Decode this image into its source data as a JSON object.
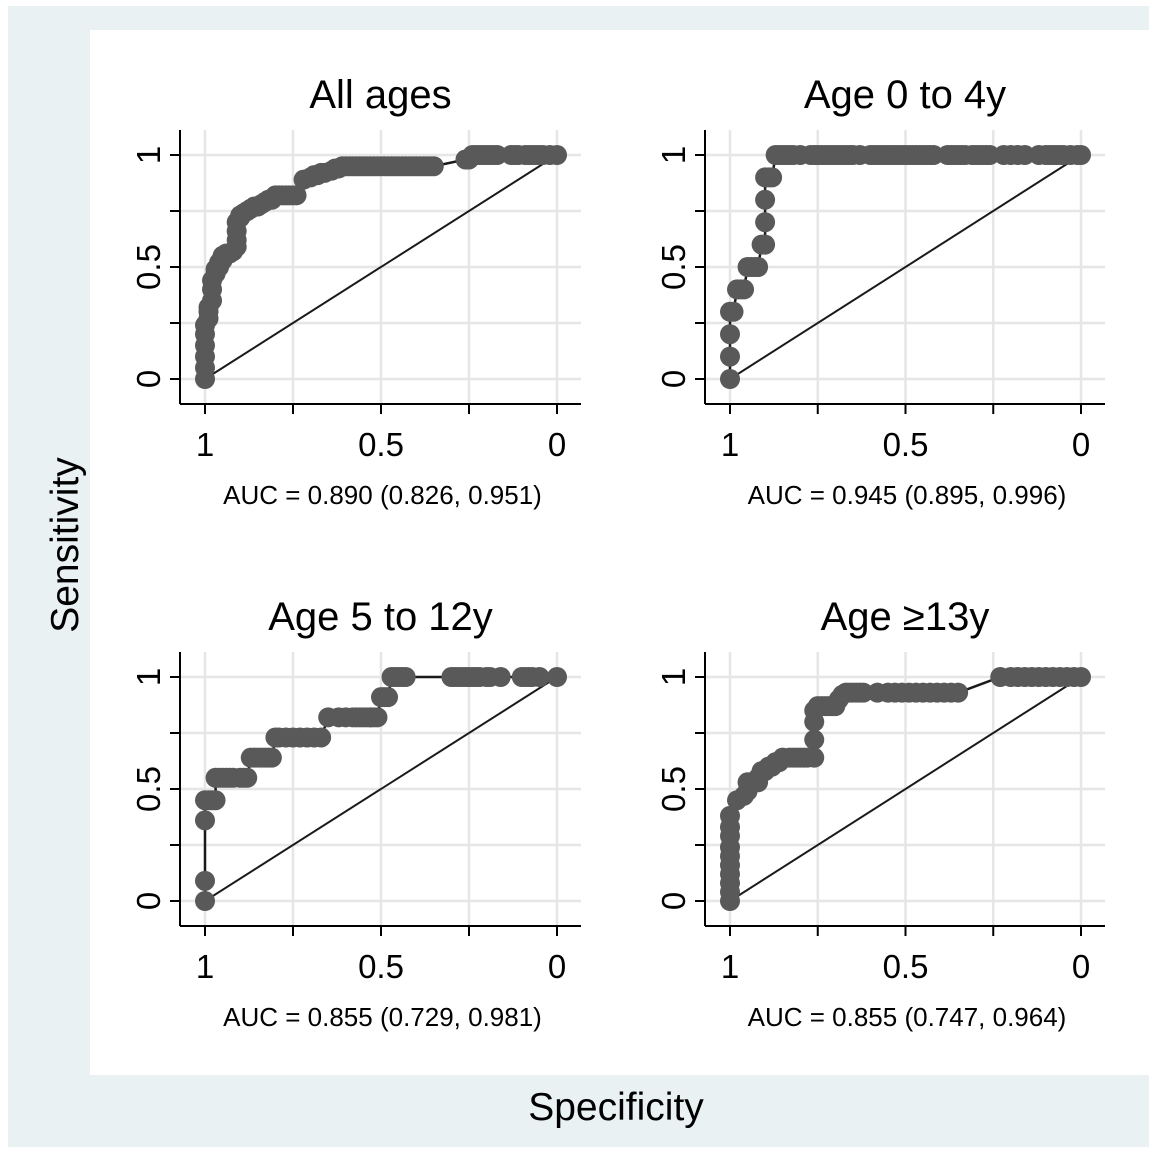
{
  "figure": {
    "xlabel": "Specificity",
    "ylabel": "Sensitivity",
    "colors": {
      "outer_background": "#eaf1f3",
      "plot_background": "#ffffff",
      "grid": "#e6e6e6",
      "marker": "#595959",
      "line": "#1a1a1a"
    }
  },
  "chart_data": [
    {
      "type": "line",
      "title": "All ages",
      "annotation": "AUC = 0.890 (0.826, 0.951)",
      "xaxis_reversed": true,
      "xlim": [
        1,
        0
      ],
      "ylim": [
        0,
        1
      ],
      "xticks": [
        "1",
        "0.5",
        "0"
      ],
      "yticks": [
        "0",
        "0.5",
        "1"
      ],
      "xtick_values": [
        1,
        0.5,
        0
      ],
      "ytick_values": [
        0,
        0.5,
        1
      ],
      "grid": true,
      "reference_line": true,
      "series": [
        {
          "x": [
            1,
            1,
            1,
            1,
            1,
            1,
            0.99,
            0.99,
            0.99,
            0.98,
            0.98,
            0.98,
            0.97,
            0.97,
            0.96,
            0.96,
            0.95,
            0.95,
            0.94,
            0.93,
            0.92,
            0.91,
            0.91,
            0.91,
            0.91,
            0.9,
            0.9,
            0.89,
            0.88,
            0.87,
            0.86,
            0.85,
            0.84,
            0.83,
            0.82,
            0.81,
            0.8,
            0.79,
            0.78,
            0.77,
            0.76,
            0.75,
            0.74,
            0.72,
            0.7,
            0.69,
            0.68,
            0.67,
            0.66,
            0.64,
            0.63,
            0.62,
            0.61,
            0.6,
            0.59,
            0.58,
            0.57,
            0.56,
            0.55,
            0.54,
            0.53,
            0.52,
            0.51,
            0.5,
            0.49,
            0.48,
            0.47,
            0.46,
            0.45,
            0.44,
            0.43,
            0.42,
            0.41,
            0.4,
            0.39,
            0.38,
            0.37,
            0.36,
            0.35,
            0.26,
            0.25,
            0.24,
            0.23,
            0.22,
            0.21,
            0.2,
            0.19,
            0.18,
            0.17,
            0.13,
            0.12,
            0.11,
            0.09,
            0.08,
            0.07,
            0.06,
            0.05,
            0.04,
            0.02,
            0
          ],
          "y": [
            0,
            0.05,
            0.1,
            0.15,
            0.2,
            0.24,
            0.27,
            0.3,
            0.32,
            0.35,
            0.4,
            0.44,
            0.47,
            0.49,
            0.5,
            0.52,
            0.53,
            0.55,
            0.56,
            0.56,
            0.57,
            0.59,
            0.62,
            0.66,
            0.7,
            0.72,
            0.73,
            0.74,
            0.75,
            0.76,
            0.77,
            0.77,
            0.78,
            0.79,
            0.8,
            0.8,
            0.82,
            0.82,
            0.82,
            0.82,
            0.82,
            0.82,
            0.82,
            0.89,
            0.9,
            0.91,
            0.91,
            0.92,
            0.92,
            0.93,
            0.94,
            0.94,
            0.95,
            0.95,
            0.95,
            0.95,
            0.95,
            0.95,
            0.95,
            0.95,
            0.95,
            0.95,
            0.95,
            0.95,
            0.95,
            0.95,
            0.95,
            0.95,
            0.95,
            0.95,
            0.95,
            0.95,
            0.95,
            0.95,
            0.95,
            0.95,
            0.95,
            0.95,
            0.95,
            0.98,
            0.98,
            1,
            1,
            1,
            1,
            1,
            1,
            1,
            1,
            1,
            1,
            1,
            1,
            1,
            1,
            1,
            1,
            1,
            1,
            1
          ]
        }
      ]
    },
    {
      "type": "line",
      "title": "Age 0 to 4y",
      "annotation": "AUC = 0.945 (0.895, 0.996)",
      "xaxis_reversed": true,
      "xlim": [
        1,
        0
      ],
      "ylim": [
        0,
        1
      ],
      "xticks": [
        "1",
        "0.5",
        "0"
      ],
      "yticks": [
        "0",
        "0.5",
        "1"
      ],
      "xtick_values": [
        1,
        0.5,
        0
      ],
      "ytick_values": [
        0,
        0.5,
        1
      ],
      "grid": true,
      "reference_line": true,
      "series": [
        {
          "x": [
            1,
            1,
            1,
            1,
            0.99,
            0.98,
            0.97,
            0.96,
            0.95,
            0.94,
            0.93,
            0.92,
            0.91,
            0.9,
            0.9,
            0.9,
            0.9,
            0.89,
            0.88,
            0.87,
            0.86,
            0.85,
            0.84,
            0.83,
            0.82,
            0.8,
            0.77,
            0.76,
            0.75,
            0.74,
            0.73,
            0.72,
            0.71,
            0.7,
            0.69,
            0.68,
            0.67,
            0.66,
            0.65,
            0.63,
            0.6,
            0.59,
            0.58,
            0.57,
            0.56,
            0.55,
            0.54,
            0.53,
            0.52,
            0.51,
            0.5,
            0.49,
            0.48,
            0.47,
            0.46,
            0.45,
            0.44,
            0.43,
            0.42,
            0.38,
            0.37,
            0.36,
            0.35,
            0.34,
            0.33,
            0.31,
            0.3,
            0.29,
            0.28,
            0.27,
            0.26,
            0.22,
            0.2,
            0.18,
            0.16,
            0.12,
            0.1,
            0.09,
            0.08,
            0.07,
            0.06,
            0.05,
            0.03,
            0.01,
            0
          ],
          "y": [
            0,
            0.1,
            0.2,
            0.3,
            0.3,
            0.4,
            0.4,
            0.4,
            0.5,
            0.5,
            0.5,
            0.5,
            0.6,
            0.6,
            0.7,
            0.8,
            0.9,
            0.9,
            0.9,
            1,
            1,
            1,
            1,
            1,
            1,
            1,
            1,
            1,
            1,
            1,
            1,
            1,
            1,
            1,
            1,
            1,
            1,
            1,
            1,
            1,
            1,
            1,
            1,
            1,
            1,
            1,
            1,
            1,
            1,
            1,
            1,
            1,
            1,
            1,
            1,
            1,
            1,
            1,
            1,
            1,
            1,
            1,
            1,
            1,
            1,
            1,
            1,
            1,
            1,
            1,
            1,
            1,
            1,
            1,
            1,
            1,
            1,
            1,
            1,
            1,
            1,
            1,
            1,
            1,
            1
          ]
        }
      ]
    },
    {
      "type": "line",
      "title": "Age 5 to 12y",
      "annotation": "AUC = 0.855 (0.729, 0.981)",
      "xaxis_reversed": true,
      "xlim": [
        1,
        0
      ],
      "ylim": [
        0,
        1
      ],
      "xticks": [
        "1",
        "0.5",
        "0"
      ],
      "yticks": [
        "0",
        "0.5",
        "1"
      ],
      "xtick_values": [
        1,
        0.5,
        0
      ],
      "ytick_values": [
        0,
        0.5,
        1
      ],
      "grid": true,
      "reference_line": true,
      "series": [
        {
          "x": [
            1,
            1,
            1,
            1,
            0.99,
            0.98,
            0.97,
            0.97,
            0.96,
            0.95,
            0.94,
            0.93,
            0.92,
            0.9,
            0.89,
            0.88,
            0.87,
            0.86,
            0.85,
            0.84,
            0.83,
            0.82,
            0.81,
            0.8,
            0.79,
            0.77,
            0.75,
            0.73,
            0.71,
            0.69,
            0.67,
            0.65,
            0.62,
            0.6,
            0.58,
            0.57,
            0.56,
            0.55,
            0.54,
            0.53,
            0.53,
            0.52,
            0.51,
            0.5,
            0.49,
            0.48,
            0.47,
            0.46,
            0.45,
            0.44,
            0.43,
            0.3,
            0.29,
            0.28,
            0.27,
            0.26,
            0.25,
            0.24,
            0.23,
            0.22,
            0.2,
            0.19,
            0.16,
            0.1,
            0.09,
            0.08,
            0.07,
            0.05,
            0
          ],
          "y": [
            0,
            0.09,
            0.36,
            0.45,
            0.45,
            0.45,
            0.45,
            0.55,
            0.55,
            0.55,
            0.55,
            0.55,
            0.55,
            0.55,
            0.55,
            0.55,
            0.64,
            0.64,
            0.64,
            0.64,
            0.64,
            0.64,
            0.64,
            0.73,
            0.73,
            0.73,
            0.73,
            0.73,
            0.73,
            0.73,
            0.73,
            0.82,
            0.82,
            0.82,
            0.82,
            0.82,
            0.82,
            0.82,
            0.82,
            0.82,
            0.82,
            0.82,
            0.82,
            0.91,
            0.91,
            0.91,
            1,
            1,
            1,
            1,
            1,
            1,
            1,
            1,
            1,
            1,
            1,
            1,
            1,
            1,
            1,
            1,
            1,
            1,
            1,
            1,
            1,
            1,
            1
          ]
        }
      ]
    },
    {
      "type": "line",
      "title": "Age ≥13y",
      "annotation": "AUC = 0.855 (0.747, 0.964)",
      "xaxis_reversed": true,
      "xlim": [
        1,
        0
      ],
      "ylim": [
        0,
        1
      ],
      "xticks": [
        "1",
        "0.5",
        "0"
      ],
      "yticks": [
        "0",
        "0.5",
        "1"
      ],
      "xtick_values": [
        1,
        0.5,
        0
      ],
      "ytick_values": [
        0,
        0.5,
        1
      ],
      "grid": true,
      "reference_line": true,
      "series": [
        {
          "x": [
            1,
            1,
            1,
            1,
            1,
            1,
            1,
            1,
            1,
            1,
            0.98,
            0.96,
            0.95,
            0.95,
            0.94,
            0.93,
            0.92,
            0.92,
            0.91,
            0.9,
            0.89,
            0.88,
            0.87,
            0.86,
            0.85,
            0.83,
            0.82,
            0.81,
            0.8,
            0.79,
            0.78,
            0.76,
            0.76,
            0.76,
            0.76,
            0.75,
            0.74,
            0.73,
            0.72,
            0.71,
            0.7,
            0.69,
            0.68,
            0.67,
            0.66,
            0.65,
            0.64,
            0.63,
            0.62,
            0.58,
            0.55,
            0.53,
            0.51,
            0.49,
            0.47,
            0.45,
            0.43,
            0.41,
            0.39,
            0.37,
            0.35,
            0.23,
            0.2,
            0.18,
            0.16,
            0.14,
            0.12,
            0.1,
            0.08,
            0.06,
            0.04,
            0.02,
            0
          ],
          "y": [
            0,
            0.04,
            0.08,
            0.12,
            0.16,
            0.2,
            0.24,
            0.29,
            0.33,
            0.38,
            0.45,
            0.47,
            0.49,
            0.53,
            0.53,
            0.53,
            0.53,
            0.55,
            0.58,
            0.58,
            0.6,
            0.6,
            0.62,
            0.62,
            0.64,
            0.64,
            0.64,
            0.64,
            0.64,
            0.64,
            0.64,
            0.64,
            0.72,
            0.8,
            0.85,
            0.87,
            0.87,
            0.87,
            0.87,
            0.87,
            0.87,
            0.9,
            0.92,
            0.93,
            0.93,
            0.93,
            0.93,
            0.93,
            0.93,
            0.93,
            0.93,
            0.93,
            0.93,
            0.93,
            0.93,
            0.93,
            0.93,
            0.93,
            0.93,
            0.93,
            0.93,
            1,
            1,
            1,
            1,
            1,
            1,
            1,
            1,
            1,
            1,
            1,
            1
          ]
        }
      ]
    }
  ]
}
